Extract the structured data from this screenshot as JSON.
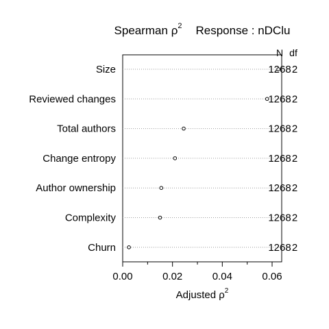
{
  "chart_data": {
    "type": "scatter",
    "title_main": "Spearman ρ",
    "title_sup": "2",
    "title_response": "Response : nDClu",
    "xlabel_main": "Adjusted ρ",
    "xlabel_sup": "2",
    "col_headers": {
      "n": "N",
      "df": "df"
    },
    "xlim": [
      0.0,
      0.064
    ],
    "xticks": [
      "0.00",
      "0.02",
      "0.04",
      "0.06"
    ],
    "minor_ticks": [
      0.01,
      0.03,
      0.05
    ],
    "rows": [
      {
        "label": "Size",
        "value": 0.0625,
        "n": "1268",
        "df": "2"
      },
      {
        "label": "Reviewed changes",
        "value": 0.058,
        "n": "1268",
        "df": "2"
      },
      {
        "label": "Total authors",
        "value": 0.0245,
        "n": "1268",
        "df": "2"
      },
      {
        "label": "Change entropy",
        "value": 0.021,
        "n": "1268",
        "df": "2"
      },
      {
        "label": "Author ownership",
        "value": 0.0155,
        "n": "1268",
        "df": "2"
      },
      {
        "label": "Complexity",
        "value": 0.015,
        "n": "1268",
        "df": "2"
      },
      {
        "label": "Churn",
        "value": 0.0025,
        "n": "1268",
        "df": "2"
      }
    ]
  }
}
